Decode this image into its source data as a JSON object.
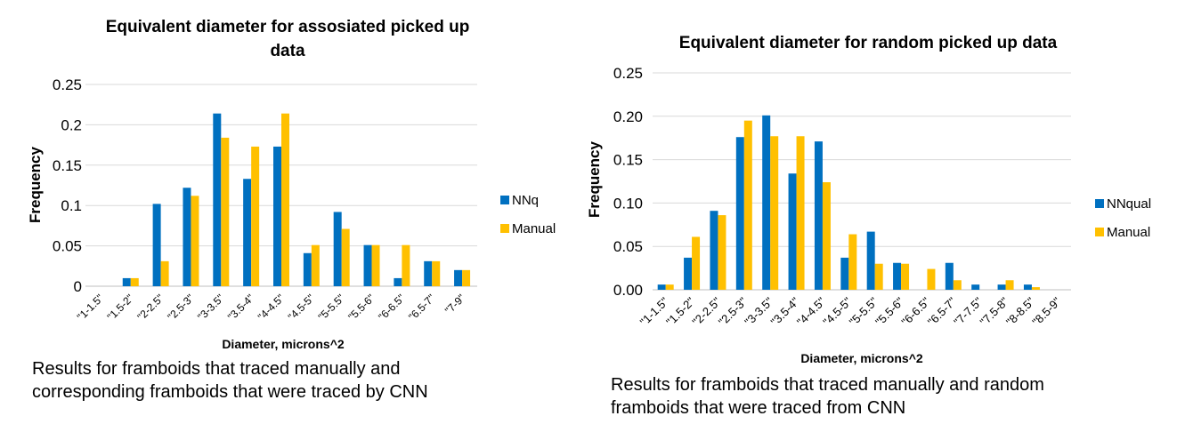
{
  "captions": {
    "left": [
      "Results for framboids that traced manually  and",
      "corresponding framboids that were traced by CNN"
    ],
    "right": [
      "Results for framboids that traced manually  and random",
      "framboids that  were  traced from CNN"
    ]
  },
  "colors": {
    "series1": "#0070C0",
    "series2": "#FFC000",
    "grid": "#D9D9D9",
    "axis": "#BFBFBF"
  },
  "chart_data": [
    {
      "type": "bar",
      "title": [
        "Equivalent diameter for assosiated picked up",
        "data"
      ],
      "xlabel": "Diameter, microns^2",
      "ylabel": "Frequency",
      "ylim": [
        0,
        0.25
      ],
      "yticks": [
        "0",
        "0.05",
        "0.1",
        "0.15",
        "0.2",
        "0.25"
      ],
      "categories": [
        "\"1-1.5\"",
        "\"1.5-2\"",
        "\"2-2.5\"",
        "\"2.5-3\"",
        "\"3-3.5\"",
        "\"3.5-4\"",
        "\"4-4.5\"",
        "\"4.5-5\"",
        "\"5-5.5\"",
        "\"5.5-6\"",
        "\"6-6.5\"",
        "\"6.5-7\"",
        "\"7-9\""
      ],
      "series": [
        {
          "name": "NNq",
          "values": [
            0,
            0.01,
            0.102,
            0.122,
            0.214,
            0.133,
            0.173,
            0.041,
            0.092,
            0.051,
            0.01,
            0.031,
            0.02
          ]
        },
        {
          "name": "Manual",
          "values": [
            0,
            0.01,
            0.031,
            0.112,
            0.184,
            0.173,
            0.214,
            0.051,
            0.071,
            0.051,
            0.051,
            0.031,
            0.02
          ]
        }
      ],
      "legend": "right",
      "grid": true
    },
    {
      "type": "bar",
      "title": [
        "Equivalent diameter for random picked up data"
      ],
      "xlabel": "Diameter,  microns^2",
      "ylabel": "Frequency",
      "ylim": [
        0,
        0.25
      ],
      "yticks": [
        "0.00",
        "0.05",
        "0.10",
        "0.15",
        "0.20",
        "0.25"
      ],
      "categories": [
        "\"1-1.5\"",
        "\"1.5-2\"",
        "\"2-2.5\"",
        "\"2.5-3\"",
        "\"3-3.5\"",
        "\"3.5-4\"",
        "\"4-4.5\"",
        "\"4.5-5\"",
        "\"5-5.5\"",
        "\"5.5-6\"",
        "\"6-6.5\"",
        "\"6.5-7\"",
        "\"7-7.5\"",
        "\"7.5-8\"",
        "\"8-8.5\"",
        "\"8.5-9\""
      ],
      "series": [
        {
          "name": "NNqual",
          "values": [
            0.006,
            0.037,
            0.091,
            0.176,
            0.201,
            0.134,
            0.171,
            0.037,
            0.067,
            0.031,
            0,
            0.031,
            0.006,
            0.006,
            0.006,
            0
          ]
        },
        {
          "name": "Manual",
          "values": [
            0.006,
            0.061,
            0.086,
            0.195,
            0.177,
            0.177,
            0.124,
            0.064,
            0.03,
            0.03,
            0.024,
            0.011,
            0,
            0.011,
            0.003,
            0
          ]
        }
      ],
      "legend": "right",
      "grid": true
    }
  ]
}
